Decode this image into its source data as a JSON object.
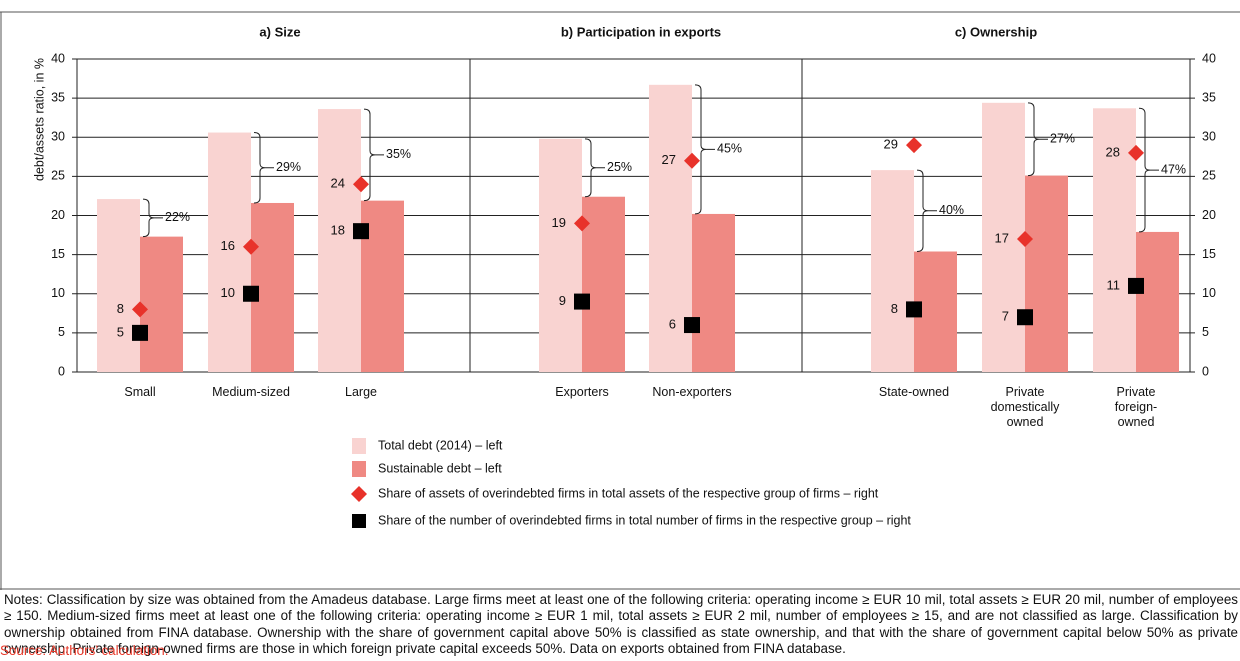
{
  "chart_data": {
    "type": "bar",
    "panel_titles": [
      "a) Size",
      "b) Participation in exports",
      "c) Ownership"
    ],
    "categories": [
      "Small",
      "Medium-sized",
      "Large",
      "Exporters",
      "Non-exporters",
      "State-owned",
      "Private\ndomestically\nowned",
      "Private\nforeign-\nowned"
    ],
    "y_label": "debt/assets ratio, in %",
    "ylim": [
      0,
      40
    ],
    "yticks": [
      0,
      5,
      10,
      15,
      20,
      25,
      30,
      35,
      40
    ],
    "y2lim": [
      0,
      40
    ],
    "y2ticks": [
      0,
      5,
      10,
      15,
      20,
      25,
      30,
      35,
      40
    ],
    "grid": true,
    "series": [
      {
        "name": "Total debt (2014) – left",
        "color": "#f9d3d1",
        "kind": "bar",
        "values": [
          22.1,
          30.6,
          33.6,
          29.8,
          36.7,
          25.8,
          34.4,
          33.7
        ]
      },
      {
        "name": "Sustainable debt – left",
        "color": "#ef8983",
        "kind": "bar",
        "values": [
          17.3,
          21.6,
          21.9,
          22.4,
          20.2,
          15.4,
          25.1,
          17.9
        ]
      },
      {
        "name": "Share of assets of overindebted firms in total assets of the respective group of firms – right",
        "color": "#e8322a",
        "kind": "diamond",
        "axis": "y2",
        "values": [
          8,
          16,
          24,
          19,
          27,
          29,
          17,
          28
        ]
      },
      {
        "name": "Share of the number of overindebted firms in total number of firms in the respective group – right",
        "color": "#000000",
        "kind": "square",
        "axis": "y2",
        "values": [
          5,
          10,
          18,
          9,
          6,
          8,
          7,
          11
        ]
      }
    ],
    "bracket_labels": [
      "22%",
      "29%",
      "35%",
      "25%",
      "45%",
      "40%",
      "27%",
      "47%"
    ]
  },
  "notes": "Notes: Classification by size was obtained from the Amadeus database. Large firms meet at least one of the following criteria: operating income ≥ EUR 10 mil, total assets ≥ EUR 20 mil, number of employees ≥ 150. Medium-sized firms meet at least one of the following criteria: operating income ≥ EUR 1 mil, total assets ≥ EUR 2 mil, number of employees ≥ 15, and are not classified as large. Classification by ownership obtained from FINA database. Ownership with the share of government capital above 50% is classified as state ownership, and that with the share of government capital below 50% as private ownership. Private foreign-owned firms are those in which foreign private capital exceeds 50%. Data on exports obtained from FINA database.",
  "source": "Source: Authors’ calculation."
}
